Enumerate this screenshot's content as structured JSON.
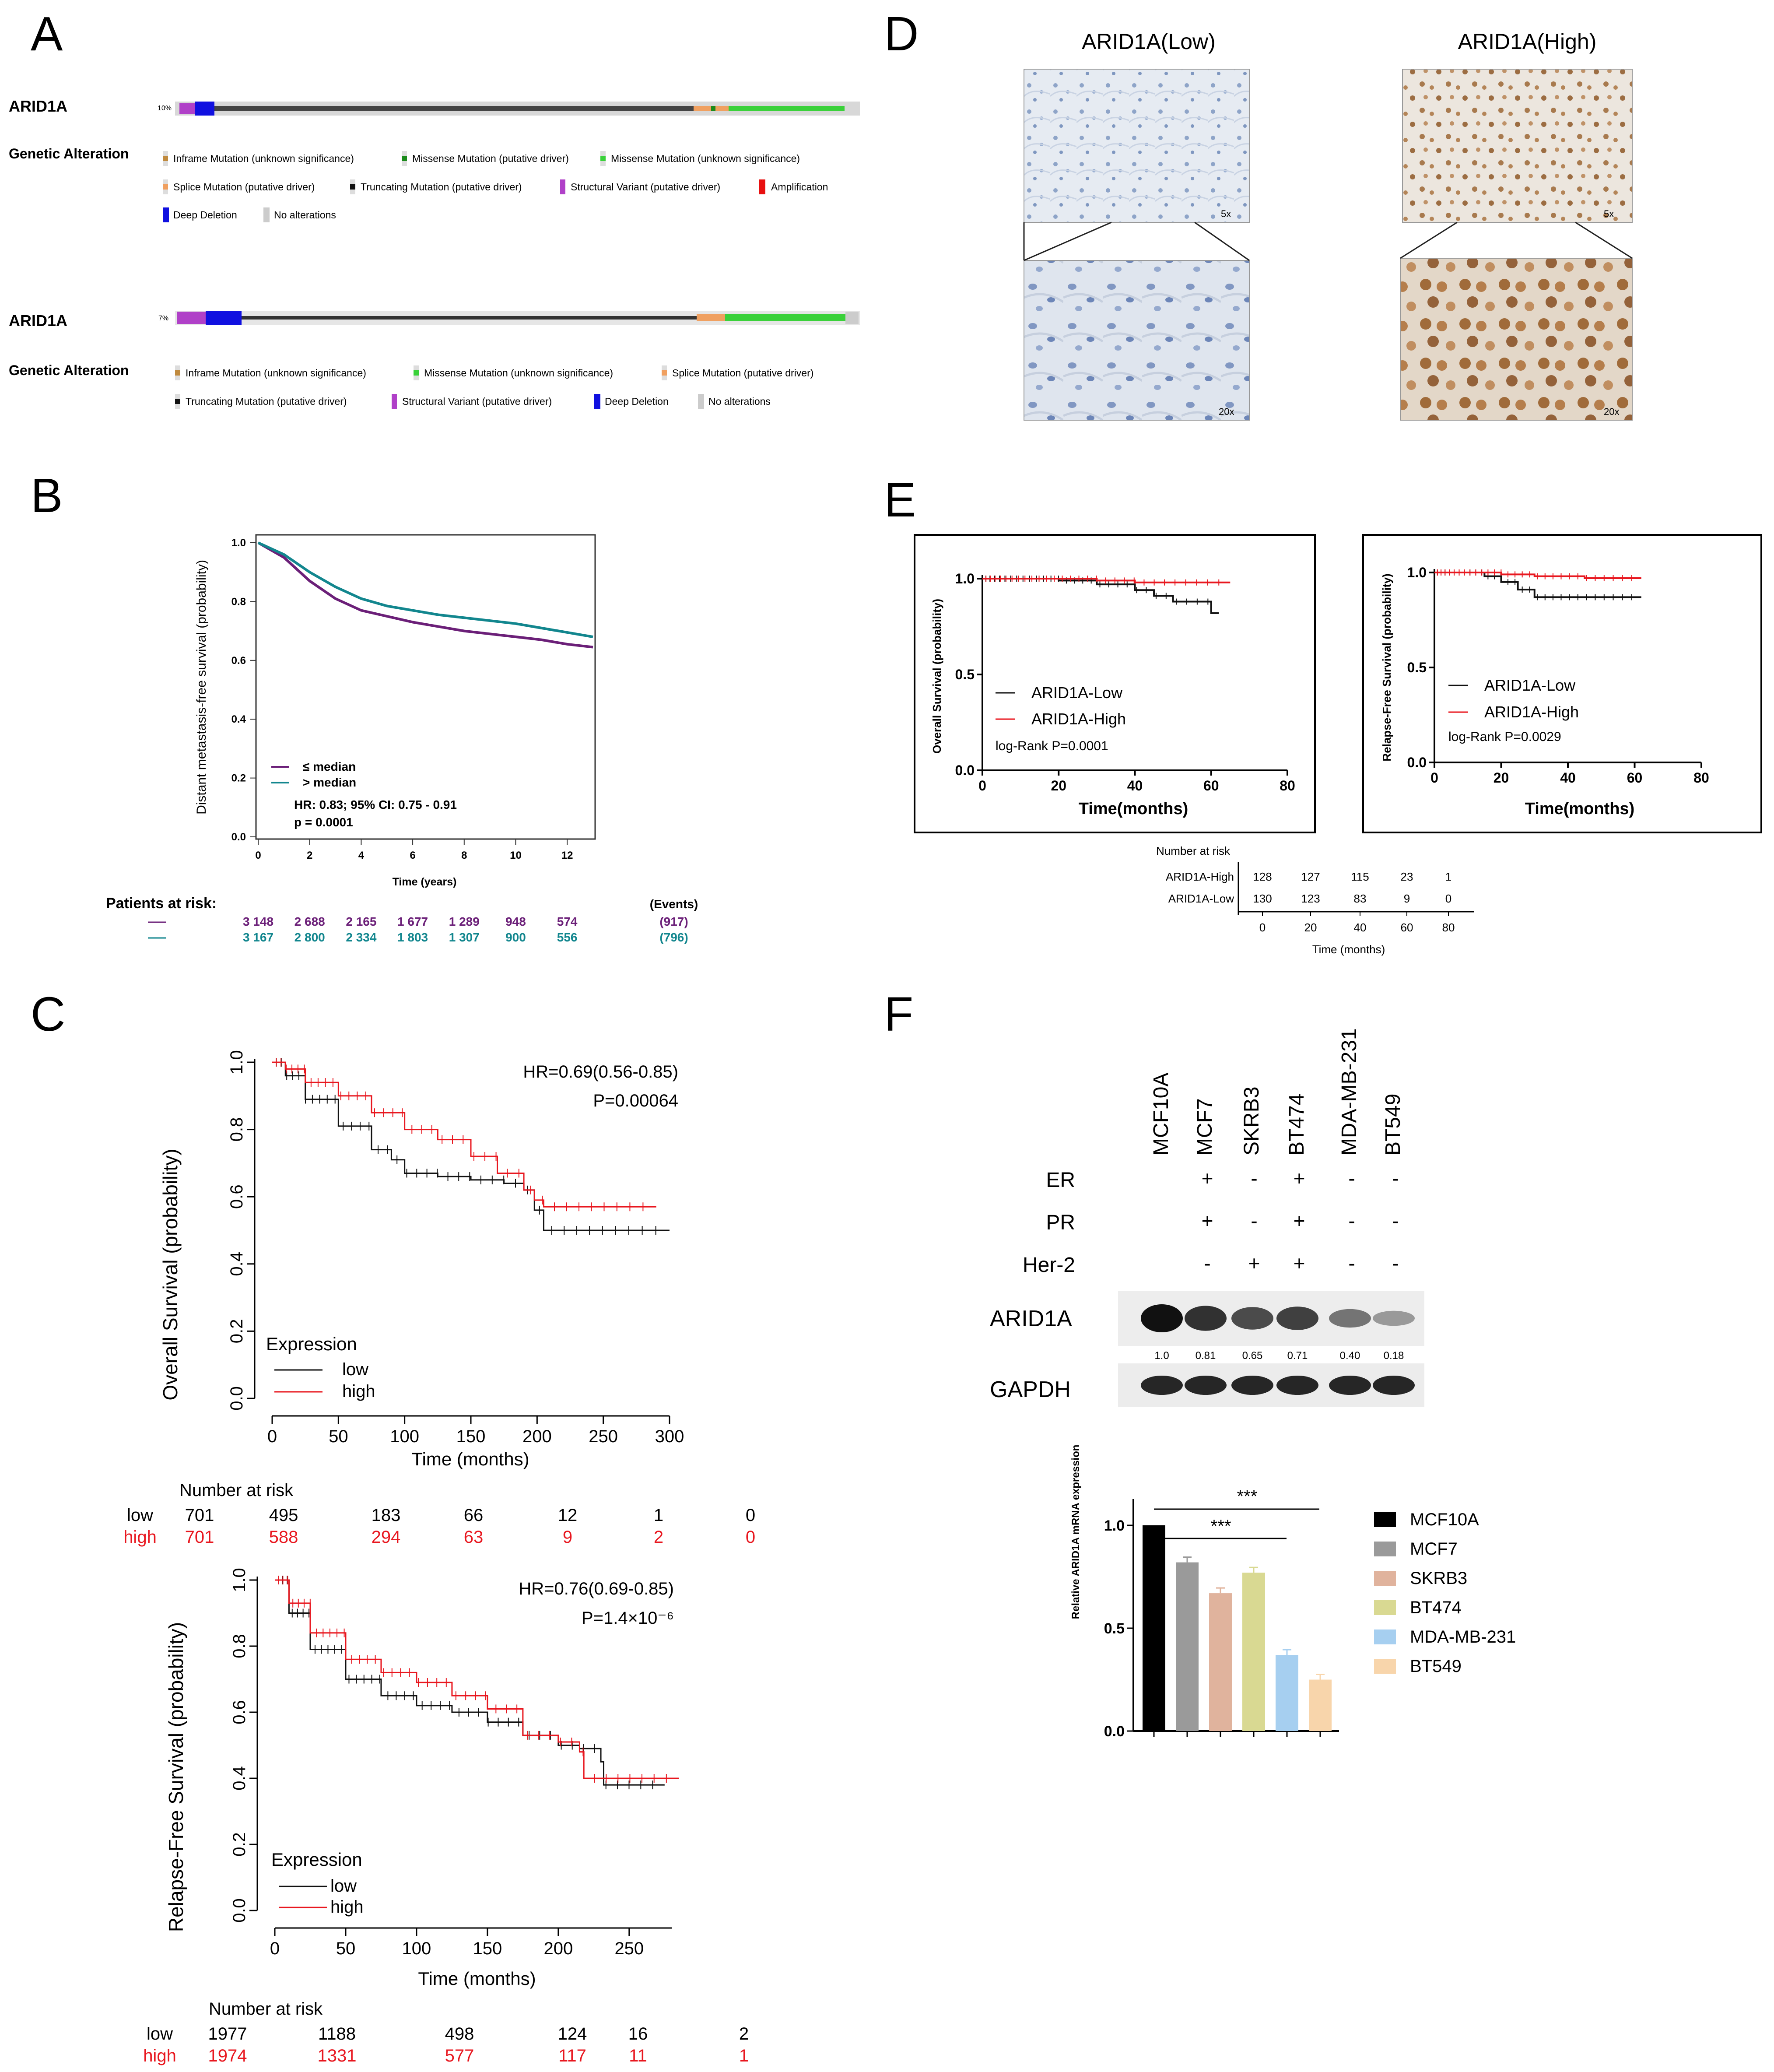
{
  "panels": {
    "A": {
      "letter": "A",
      "track1": {
        "gene": "ARID1A",
        "pct": "10%",
        "heading": "Genetic Alteration",
        "legend": [
          "Inframe Mutation (unknown significance)",
          "Missense Mutation (putative driver)",
          "Missense Mutation (unknown significance)",
          "Splice Mutation (putative driver)",
          "Truncating Mutation (putative driver)",
          "Structural Variant (putative driver)",
          "Amplification",
          "Deep Deletion",
          "No alterations"
        ]
      },
      "track2": {
        "gene": "ARID1A",
        "pct": "7%",
        "heading": "Genetic Alteration",
        "legend": [
          "Inframe Mutation (unknown significance)",
          "Missense Mutation (unknown significance)",
          "Splice Mutation (putative driver)",
          "Truncating Mutation (putative driver)",
          "Structural Variant (putative driver)",
          "Deep Deletion",
          "No alterations"
        ]
      },
      "colors": {
        "inframe": "#c08a3e",
        "missense_driver": "#1a8a1a",
        "missense_unknown": "#3ad13a",
        "splice": "#f0a060",
        "truncating": "#111111",
        "structural": "#b040c8",
        "amplification": "#e81010",
        "deep_deletion": "#1010e0",
        "none": "#cccccc"
      }
    },
    "B": {
      "letter": "B",
      "ylabel": "Distant metastasis-free survival (probability)",
      "xlabel": "Time (years)",
      "legend": [
        "≤ median",
        "> median"
      ],
      "stats": [
        "HR: 0.83; 95% CI: 0.75 - 0.91",
        "p = 0.0001"
      ],
      "risk_title": "Patients at risk:",
      "events_title": "(Events)",
      "risk_rows": [
        {
          "values": [
            "3 148",
            "2 688",
            "2 165",
            "1 677",
            "1 289",
            "948",
            "574"
          ],
          "events": "(917)",
          "color": "#6b1f78"
        },
        {
          "values": [
            "3 167",
            "2 800",
            "2 334",
            "1 803",
            "1 307",
            "900",
            "556"
          ],
          "events": "(796)",
          "color": "#12868e"
        }
      ]
    },
    "C": {
      "letter": "C",
      "os": {
        "ylabel": "Overall Survival (probability)",
        "xlabel": "Time (months)",
        "hr": "HR=0.69(0.56-0.85)",
        "p": "P=0.00064",
        "legend_title": "Expression",
        "legend": [
          "low",
          "high"
        ],
        "risk_title": "Number at risk",
        "rows": [
          {
            "label": "low",
            "values": [
              "701",
              "495",
              "183",
              "66",
              "12",
              "1",
              "0"
            ]
          },
          {
            "label": "high",
            "values": [
              "701",
              "588",
              "294",
              "63",
              "9",
              "2",
              "0"
            ]
          }
        ]
      },
      "rfs": {
        "ylabel": "Relapse-Free Survival (probability)",
        "xlabel": "Time (months)",
        "hr": "HR=0.76(0.69-0.85)",
        "p": "P=1.4×10⁻⁶",
        "legend_title": "Expression",
        "legend": [
          "low",
          "high"
        ],
        "risk_title": "Number at risk",
        "rows": [
          {
            "label": "low",
            "values": [
              "1977",
              "1188",
              "498",
              "124",
              "16",
              "2"
            ]
          },
          {
            "label": "high",
            "values": [
              "1974",
              "1331",
              "577",
              "117",
              "11",
              "1"
            ]
          }
        ]
      }
    },
    "D": {
      "letter": "D",
      "titles": [
        "ARID1A(Low)",
        "ARID1A(High)"
      ],
      "mags": [
        "5x",
        "20x"
      ]
    },
    "E": {
      "letter": "E",
      "os": {
        "ylabel": "Overall Survival (probability)",
        "xlabel": "Time(months)",
        "legend": [
          "ARID1A-Low",
          "ARID1A-High"
        ],
        "p": "log-Rank P=0.0001"
      },
      "rfs": {
        "ylabel": "Relapse-Free Survival (probability)",
        "xlabel": "Time(months)",
        "legend": [
          "ARID1A-Low",
          "ARID1A-High"
        ],
        "p": "log-Rank P=0.0029"
      },
      "risk_title": "Number at risk",
      "rows": [
        {
          "label": "ARID1A-High",
          "values": [
            "128",
            "127",
            "115",
            "23",
            "1"
          ]
        },
        {
          "label": "ARID1A-Low",
          "values": [
            "130",
            "123",
            "83",
            "9",
            "0"
          ]
        }
      ],
      "risk_xlabel": "Time (months)"
    },
    "F": {
      "letter": "F",
      "cell_lines": [
        "MCF10A",
        "MCF7",
        "SKRB3",
        "BT474",
        "MDA-MB-231",
        "BT549"
      ],
      "receptors": [
        {
          "label": "ER",
          "status": [
            "",
            "+",
            "-",
            "+",
            "-",
            "-"
          ]
        },
        {
          "label": "PR",
          "status": [
            "",
            "+",
            "-",
            "+",
            "-",
            "-"
          ]
        },
        {
          "label": "Her-2",
          "status": [
            "",
            "-",
            "+",
            "+",
            "-",
            "-"
          ]
        }
      ],
      "blot_labels": [
        "ARID1A",
        "GAPDH"
      ],
      "densities": [
        "1.0",
        "0.81",
        "0.65",
        "0.71",
        "0.40",
        "0.18"
      ],
      "sig": [
        "***",
        "***"
      ]
    }
  },
  "chart_data": [
    {
      "type": "line",
      "panel": "B",
      "title": "",
      "xlabel": "Time (years)",
      "ylabel": "Distant metastasis-free survival (probability)",
      "xlim": [
        0,
        13
      ],
      "ylim": [
        0,
        1
      ],
      "x_ticks": [
        0,
        2,
        4,
        6,
        8,
        10,
        12
      ],
      "y_ticks": [
        0.0,
        0.2,
        0.4,
        0.6,
        0.8,
        1.0
      ],
      "series": [
        {
          "name": "≤ median",
          "color": "#6b1f78",
          "x": [
            0,
            1,
            2,
            3,
            4,
            5,
            6,
            7,
            8,
            9,
            10,
            11,
            12,
            13
          ],
          "y": [
            1.0,
            0.95,
            0.87,
            0.81,
            0.77,
            0.75,
            0.73,
            0.715,
            0.7,
            0.69,
            0.68,
            0.67,
            0.655,
            0.645
          ]
        },
        {
          "name": "> median",
          "color": "#12868e",
          "x": [
            0,
            1,
            2,
            3,
            4,
            5,
            6,
            7,
            8,
            9,
            10,
            11,
            12,
            13
          ],
          "y": [
            1.0,
            0.96,
            0.9,
            0.85,
            0.81,
            0.785,
            0.77,
            0.755,
            0.745,
            0.735,
            0.725,
            0.71,
            0.695,
            0.68
          ]
        }
      ]
    },
    {
      "type": "line",
      "panel": "C-OS",
      "xlabel": "Time (months)",
      "ylabel": "Overall Survival (probability)",
      "xlim": [
        0,
        300
      ],
      "ylim": [
        0,
        1
      ],
      "x_ticks": [
        0,
        50,
        100,
        150,
        200,
        250,
        300
      ],
      "y_ticks": [
        0.0,
        0.2,
        0.4,
        0.6,
        0.8,
        1.0
      ],
      "series": [
        {
          "name": "low",
          "color": "#111111",
          "x": [
            0,
            10,
            25,
            50,
            75,
            90,
            100,
            125,
            150,
            175,
            190,
            198,
            205,
            300
          ],
          "y": [
            1.0,
            0.96,
            0.89,
            0.81,
            0.74,
            0.71,
            0.67,
            0.66,
            0.65,
            0.64,
            0.62,
            0.56,
            0.5,
            0.5
          ]
        },
        {
          "name": "high",
          "color": "#e8171f",
          "x": [
            0,
            10,
            25,
            50,
            75,
            100,
            125,
            150,
            170,
            190,
            198,
            205,
            290
          ],
          "y": [
            1.0,
            0.98,
            0.94,
            0.9,
            0.85,
            0.8,
            0.77,
            0.72,
            0.67,
            0.62,
            0.59,
            0.57,
            0.57
          ]
        }
      ]
    },
    {
      "type": "line",
      "panel": "C-RFS",
      "xlabel": "Time (months)",
      "ylabel": "Relapse-Free Survival (probability)",
      "xlim": [
        0,
        280
      ],
      "ylim": [
        0,
        1
      ],
      "x_ticks": [
        0,
        50,
        100,
        150,
        200,
        250
      ],
      "y_ticks": [
        0.0,
        0.2,
        0.4,
        0.6,
        0.8,
        1.0
      ],
      "series": [
        {
          "name": "low",
          "color": "#111111",
          "x": [
            0,
            10,
            25,
            50,
            75,
            100,
            125,
            150,
            175,
            200,
            215,
            230,
            232,
            275
          ],
          "y": [
            1.0,
            0.9,
            0.79,
            0.7,
            0.65,
            0.62,
            0.6,
            0.57,
            0.53,
            0.5,
            0.49,
            0.45,
            0.38,
            0.38
          ]
        },
        {
          "name": "high",
          "color": "#e8171f",
          "x": [
            0,
            10,
            25,
            50,
            75,
            100,
            125,
            150,
            175,
            200,
            215,
            218,
            285
          ],
          "y": [
            1.0,
            0.93,
            0.84,
            0.76,
            0.72,
            0.69,
            0.65,
            0.61,
            0.53,
            0.51,
            0.48,
            0.4,
            0.4
          ]
        }
      ]
    },
    {
      "type": "line",
      "panel": "E-OS",
      "xlabel": "Time(months)",
      "ylabel": "Overall Survival (probability)",
      "xlim": [
        0,
        80
      ],
      "ylim": [
        0,
        1
      ],
      "x_ticks": [
        0,
        20,
        40,
        60,
        80
      ],
      "y_ticks": [
        0.0,
        0.5,
        1.0
      ],
      "series": [
        {
          "name": "ARID1A-Low",
          "color": "#111111",
          "x": [
            0,
            20,
            30,
            40,
            45,
            50,
            60,
            62
          ],
          "y": [
            1.0,
            0.99,
            0.97,
            0.94,
            0.91,
            0.88,
            0.82,
            0.82
          ]
        },
        {
          "name": "ARID1A-High",
          "color": "#e8171f",
          "x": [
            0,
            30,
            40,
            65
          ],
          "y": [
            1.0,
            0.99,
            0.98,
            0.98
          ]
        }
      ]
    },
    {
      "type": "line",
      "panel": "E-RFS",
      "xlabel": "Time(months)",
      "ylabel": "Relapse-Free Survival (probability)",
      "xlim": [
        0,
        80
      ],
      "ylim": [
        0,
        1
      ],
      "x_ticks": [
        0,
        20,
        40,
        60,
        80
      ],
      "y_ticks": [
        0.0,
        0.5,
        1.0
      ],
      "series": [
        {
          "name": "ARID1A-Low",
          "color": "#111111",
          "x": [
            0,
            15,
            20,
            25,
            30,
            62
          ],
          "y": [
            1.0,
            0.98,
            0.95,
            0.91,
            0.87,
            0.87
          ]
        },
        {
          "name": "ARID1A-High",
          "color": "#e8171f",
          "x": [
            0,
            20,
            30,
            45,
            62
          ],
          "y": [
            1.0,
            0.99,
            0.98,
            0.97,
            0.97
          ]
        }
      ]
    },
    {
      "type": "bar",
      "panel": "F",
      "xlabel": "",
      "ylabel": "Relative ARID1A mRNA expression",
      "ylim": [
        0,
        1.0
      ],
      "y_ticks": [
        0.0,
        0.5,
        1.0
      ],
      "categories": [
        "MCF10A",
        "MCF7",
        "SKRB3",
        "BT474",
        "MDA-MB-231",
        "BT549"
      ],
      "values": [
        1.0,
        0.82,
        0.67,
        0.77,
        0.37,
        0.25
      ],
      "colors": [
        "#000000",
        "#9a9a9a",
        "#e0b39d",
        "#d9d992",
        "#a6cff0",
        "#f8d5ab"
      ]
    }
  ]
}
